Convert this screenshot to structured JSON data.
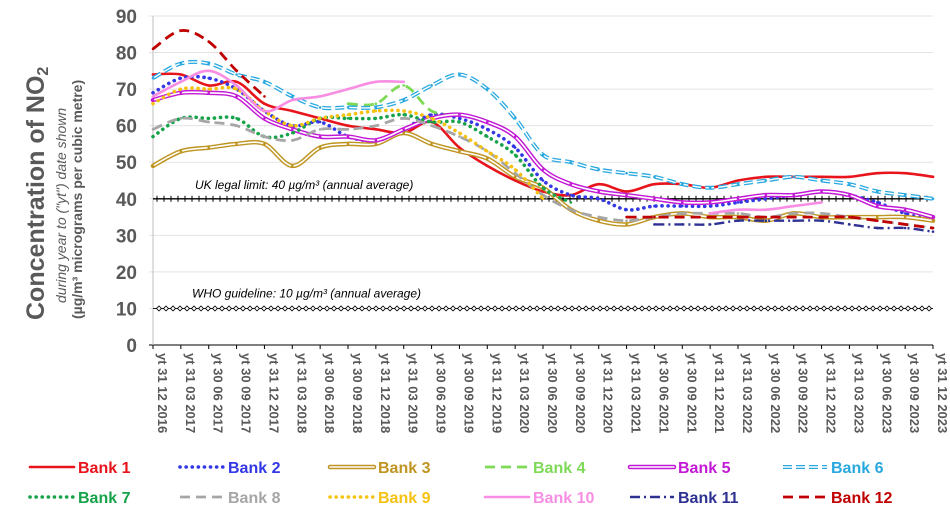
{
  "chart_data": {
    "type": "line",
    "ylabel_main": "Concentration of NO",
    "ylabel_sub": "2",
    "ylabel_line2": "during year to (\"yt\") date shown",
    "ylabel_line3": "(µg/m³ micrograms per cubic metre)",
    "ylim": [
      0,
      90
    ],
    "yticks": [
      0,
      10,
      20,
      30,
      40,
      50,
      60,
      70,
      80,
      90
    ],
    "grid": "horizontal",
    "legend_position": "bottom",
    "x": [
      "yt 31 12 2016",
      "yt 31 03 2017",
      "yt 30 06 2017",
      "yt 30 09 2017",
      "yt 31 12 2017",
      "yt 31 03 2018",
      "yt 30 06 2018",
      "yt 30 09 2018",
      "yt 31 12 2018",
      "yt 31 03 2019",
      "yt 30 06 2019",
      "yt 30 09 2019",
      "yt 31 12 2019",
      "yt 31 03 2020",
      "yt 30 06 2020",
      "yt 30 09 2020",
      "yt 31 12 2020",
      "yt 31 03 2021",
      "yt 30 06 2021",
      "yt 30 09 2021",
      "yt 31 12 2021",
      "yt 31 03 2022",
      "yt 30 06 2022",
      "yt 30 09 2022",
      "yt 31 12 2022",
      "yt 31 03 2023",
      "yt 30 06 2023",
      "yt 30 09 2023",
      "yt 31 12 2023"
    ],
    "reference_lines": [
      {
        "value": 40,
        "label": "UK legal limit:  40 µg/m³ (annual average)"
      },
      {
        "value": 10,
        "label": "WHO guideline:  10 µg/m³ (annual average)"
      }
    ],
    "series": [
      {
        "name": "Bank 1",
        "color": "#e8141c",
        "style": "solid",
        "values": [
          74,
          74,
          71,
          72,
          66,
          64,
          62,
          60,
          59,
          58,
          61,
          54,
          49,
          45,
          42,
          41,
          44,
          42,
          44,
          44,
          43,
          45,
          46,
          46,
          46,
          46,
          47,
          47,
          46
        ]
      },
      {
        "name": "Bank 2",
        "color": "#3337e6",
        "style": "dots",
        "values": [
          69,
          73,
          73,
          70,
          64,
          60,
          61,
          57,
          56,
          59,
          63,
          62,
          59,
          54,
          45,
          41,
          40,
          37,
          38,
          38,
          38,
          39,
          40,
          41,
          42,
          41,
          39,
          36,
          34
        ]
      },
      {
        "name": "Bank 3",
        "color": "#bf9522",
        "style": "double",
        "values": [
          49,
          53,
          54,
          55,
          55,
          49,
          54,
          55,
          55,
          58,
          55,
          53,
          51,
          46,
          43,
          37,
          34,
          33,
          35,
          36,
          35,
          35,
          34,
          36,
          35,
          35,
          35,
          35,
          34
        ]
      },
      {
        "name": "Bank 4",
        "color": "#7ed957",
        "style": "dash",
        "values": [
          null,
          null,
          null,
          null,
          null,
          null,
          null,
          66,
          66,
          71,
          64,
          63,
          null,
          null,
          null,
          null,
          null,
          null,
          null,
          null,
          null,
          null,
          null,
          null,
          null,
          null,
          null,
          null,
          null
        ]
      },
      {
        "name": "Bank 5",
        "color": "#c318d6",
        "style": "double",
        "values": [
          67,
          69,
          69,
          68,
          62,
          59,
          57,
          57,
          56,
          59,
          62,
          63,
          61,
          57,
          48,
          44,
          42,
          41,
          40,
          39,
          39,
          40,
          41,
          41,
          42,
          41,
          38,
          37,
          35
        ]
      },
      {
        "name": "Bank 6",
        "color": "#29a8e0",
        "style": "double-dash",
        "values": [
          73,
          77,
          77,
          74,
          72,
          68,
          65,
          65,
          65,
          67,
          71,
          74,
          70,
          62,
          52,
          50,
          48,
          47,
          46,
          44,
          43,
          44,
          45,
          46,
          45,
          44,
          42,
          41,
          40
        ]
      },
      {
        "name": "Bank 7",
        "color": "#16a34a",
        "style": "dots",
        "values": [
          57,
          62,
          62,
          62,
          57,
          58,
          62,
          62,
          62,
          63,
          61,
          61,
          57,
          52,
          43,
          39,
          null,
          null,
          null,
          null,
          null,
          null,
          null,
          null,
          null,
          null,
          null,
          null,
          null
        ]
      },
      {
        "name": "Bank 8",
        "color": "#a6a6a6",
        "style": "dash",
        "values": [
          59,
          62,
          61,
          60,
          57,
          56,
          59,
          59,
          60,
          62,
          60,
          57,
          53,
          47,
          41,
          37,
          35,
          34,
          35,
          36,
          36,
          36,
          35,
          36,
          36,
          35,
          34,
          33,
          32
        ]
      },
      {
        "name": "Bank 9",
        "color": "#f5c211",
        "style": "dots",
        "values": [
          66,
          70,
          70,
          70,
          64,
          60,
          62,
          63,
          64,
          64,
          62,
          58,
          53,
          48,
          40,
          null,
          null,
          null,
          null,
          null,
          null,
          null,
          null,
          null,
          null,
          null,
          null,
          null,
          null
        ]
      },
      {
        "name": "Bank 10",
        "color": "#f78ee4",
        "style": "solid",
        "values": [
          68,
          72,
          75,
          71,
          64,
          67,
          68,
          70,
          72,
          72,
          null,
          null,
          null,
          null,
          null,
          null,
          null,
          null,
          null,
          null,
          36,
          37,
          37,
          38,
          39,
          null,
          null,
          null,
          null
        ]
      },
      {
        "name": "Bank 11",
        "color": "#2e3192",
        "style": "dashdot",
        "values": [
          null,
          null,
          null,
          null,
          null,
          null,
          null,
          null,
          null,
          null,
          null,
          null,
          null,
          null,
          null,
          null,
          null,
          null,
          33,
          33,
          33,
          34,
          34,
          34,
          34,
          33,
          32,
          32,
          31
        ]
      },
      {
        "name": "Bank 12",
        "color": "#c00000",
        "style": "dash",
        "values": [
          81,
          86,
          83,
          75,
          68,
          null,
          null,
          null,
          null,
          null,
          null,
          null,
          null,
          null,
          null,
          null,
          null,
          35,
          35,
          35,
          35,
          35,
          35,
          35,
          35,
          35,
          34,
          33,
          32
        ]
      }
    ]
  }
}
